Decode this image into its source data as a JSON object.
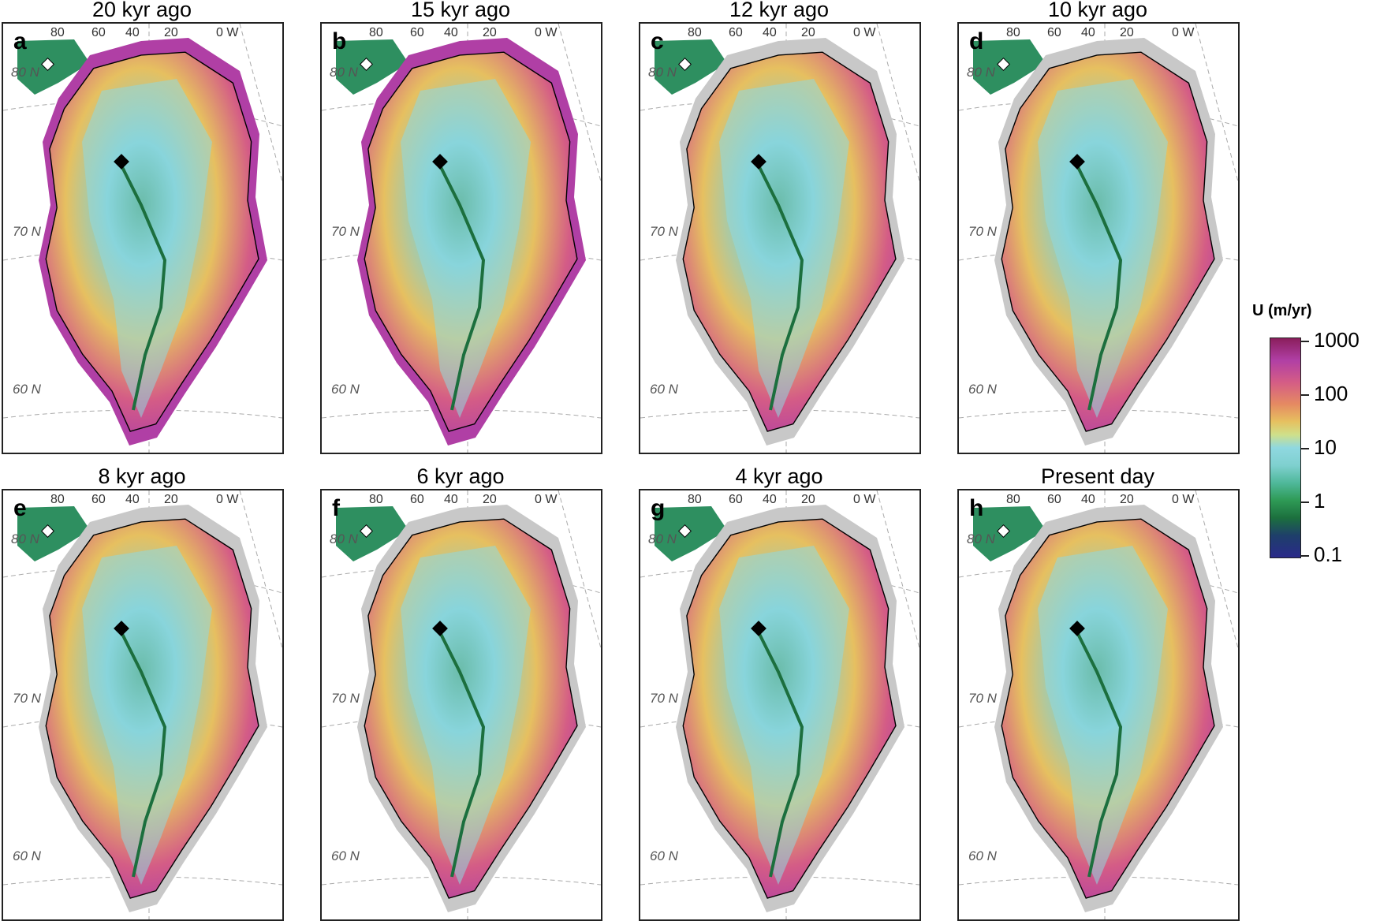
{
  "panels": [
    {
      "letter": "a",
      "title": "20 kyr ago"
    },
    {
      "letter": "b",
      "title": "15 kyr ago"
    },
    {
      "letter": "c",
      "title": "12 kyr ago"
    },
    {
      "letter": "d",
      "title": "10 kyr ago"
    },
    {
      "letter": "e",
      "title": "8 kyr ago"
    },
    {
      "letter": "f",
      "title": "6 kyr ago"
    },
    {
      "letter": "g",
      "title": "4 kyr ago"
    },
    {
      "letter": "h",
      "title": "Present day"
    }
  ],
  "longitude_labels": [
    "80",
    "60",
    "40",
    "20",
    "0 W"
  ],
  "latitude_labels": [
    "80 N",
    "70 N",
    "60 N"
  ],
  "colorbar": {
    "title": "U (m/yr)",
    "scale": "log",
    "ticks": [
      "1000",
      "100",
      "10",
      "1",
      "0.1"
    ],
    "colors": [
      "#8a1e5c",
      "#b03fa5",
      "#d45c86",
      "#e58a62",
      "#e6c060",
      "#8fd8e0",
      "#4fb89a",
      "#2e9a55",
      "#1c6f3e",
      "#2a2a8a"
    ]
  },
  "colors": {
    "ice_free_land": "#c8c8c8",
    "ice_margin": "#000000",
    "graticule": "#aaaaaa"
  },
  "markers": [
    {
      "name": "summit-marker",
      "shape": "diamond",
      "fill": "black"
    },
    {
      "name": "northwest-marker",
      "shape": "diamond",
      "fill": "white"
    }
  ]
}
